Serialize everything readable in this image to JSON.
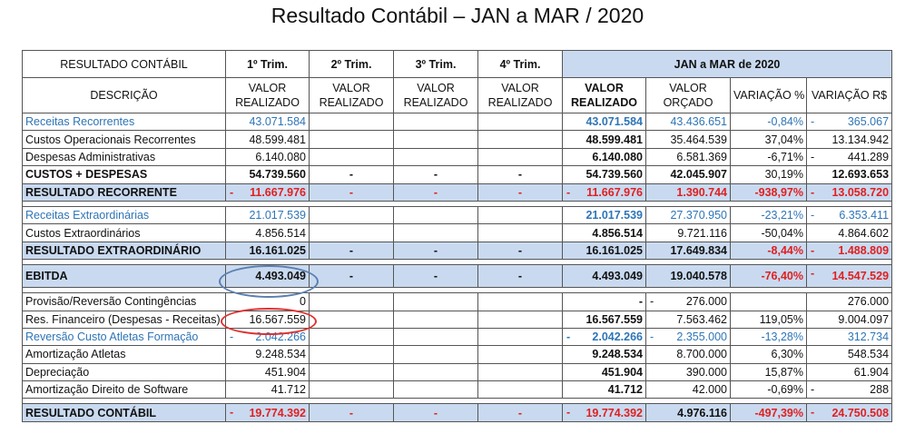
{
  "title": "Resultado Contábil  –  JAN a MAR / 2020",
  "header": {
    "corner": "RESULTADO CONTÁBIL",
    "q1": "1º Trim.",
    "q2": "2º Trim.",
    "q3": "3º Trim.",
    "q4": "4º Trim.",
    "period": "JAN a MAR de 2020",
    "descricao": "DESCRIÇÃO",
    "valor_realizado_1": "VALOR",
    "valor_realizado_2": "REALIZADO",
    "valor_orcado_1": "VALOR",
    "valor_orcado_2": "ORÇADO",
    "variacao_pct": "VARIAÇÃO %",
    "variacao_rs": "VARIAÇÃO R$"
  },
  "rows": [
    {
      "label": "Receitas Recorrentes",
      "q1": "43.071.584",
      "q2": "",
      "q3": "",
      "q4": "",
      "real": "43.071.584",
      "orc": "43.436.651",
      "vpct": "-0,84%",
      "vrs": "365.067"
    },
    {
      "label": "Custos Operacionais Recorrentes",
      "q1": "48.599.481",
      "q2": "",
      "q3": "",
      "q4": "",
      "real": "48.599.481",
      "orc": "35.464.539",
      "vpct": "37,04%",
      "vrs": "13.134.942"
    },
    {
      "label": "Despesas Administrativas",
      "q1": "6.140.080",
      "q2": "",
      "q3": "",
      "q4": "",
      "real": "6.140.080",
      "orc": "6.581.369",
      "vpct": "-6,71%",
      "vrs": "441.289"
    },
    {
      "label": "CUSTOS + DESPESAS",
      "q1": "54.739.560",
      "q2": "-",
      "q3": "-",
      "q4": "-",
      "real": "54.739.560",
      "orc": "42.045.907",
      "vpct": "30,19%",
      "vrs": "12.693.653"
    },
    {
      "label": "RESULTADO RECORRENTE",
      "q1": "11.667.976",
      "q2": "-",
      "q3": "-",
      "q4": "-",
      "real": "11.667.976",
      "orc": "1.390.744",
      "vpct": "-938,97%",
      "vrs": "13.058.720"
    },
    {
      "label": "Receitas Extraordinárias",
      "q1": "21.017.539",
      "q2": "",
      "q3": "",
      "q4": "",
      "real": "21.017.539",
      "orc": "27.370.950",
      "vpct": "-23,21%",
      "vrs": "6.353.411"
    },
    {
      "label": "Custos Extraordinários",
      "q1": "4.856.514",
      "q2": "",
      "q3": "",
      "q4": "",
      "real": "4.856.514",
      "orc": "9.721.116",
      "vpct": "-50,04%",
      "vrs": "4.864.602"
    },
    {
      "label": "RESULTADO EXTRAORDINÁRIO",
      "q1": "16.161.025",
      "q2": "-",
      "q3": "-",
      "q4": "-",
      "real": "16.161.025",
      "orc": "17.649.834",
      "vpct": "-8,44%",
      "vrs": "1.488.809"
    },
    {
      "label": "EBITDA",
      "q1": "4.493.049",
      "q2": "-",
      "q3": "-",
      "q4": "-",
      "real": "4.493.049",
      "orc": "19.040.578",
      "vpct": "-76,40%",
      "vrs": "14.547.529"
    },
    {
      "label": "Provisão/Reversão Contingências",
      "q1": "0",
      "q2": "",
      "q3": "",
      "q4": "",
      "real": "-",
      "orc": "276.000",
      "vpct": "",
      "vrs": "276.000"
    },
    {
      "label": "Res. Financeiro (Despesas - Receitas)",
      "q1": "16.567.559",
      "q2": "",
      "q3": "",
      "q4": "",
      "real": "16.567.559",
      "orc": "7.563.462",
      "vpct": "119,05%",
      "vrs": "9.004.097"
    },
    {
      "label": "Reversão Custo Atletas Formação",
      "q1": "2.042.266",
      "q2": "",
      "q3": "",
      "q4": "",
      "real": "2.042.266",
      "orc": "2.355.000",
      "vpct": "-13,28%",
      "vrs": "312.734"
    },
    {
      "label": "Amortização Atletas",
      "q1": "9.248.534",
      "q2": "",
      "q3": "",
      "q4": "",
      "real": "9.248.534",
      "orc": "8.700.000",
      "vpct": "6,30%",
      "vrs": "548.534"
    },
    {
      "label": "Depreciação",
      "q1": "451.904",
      "q2": "",
      "q3": "",
      "q4": "",
      "real": "451.904",
      "orc": "390.000",
      "vpct": "15,87%",
      "vrs": "61.904"
    },
    {
      "label": "Amortização Direito de Software",
      "q1": "41.712",
      "q2": "",
      "q3": "",
      "q4": "",
      "real": "41.712",
      "orc": "42.000",
      "vpct": "-0,69%",
      "vrs": "288"
    },
    {
      "label": "RESULTADO CONTÁBIL",
      "q1": "19.774.392",
      "q2": "-",
      "q3": "-",
      "q4": "-",
      "real": "19.774.392",
      "orc": "4.976.116",
      "vpct": "-497,39%",
      "vrs": "24.750.508"
    }
  ],
  "lead_dash": "-",
  "colors": {
    "band": "#c9daf0",
    "blue_text": "#2e75b6",
    "red_text": "#e02020",
    "ellipse_blue": "#5b7fb0",
    "ellipse_red": "#e03030"
  }
}
